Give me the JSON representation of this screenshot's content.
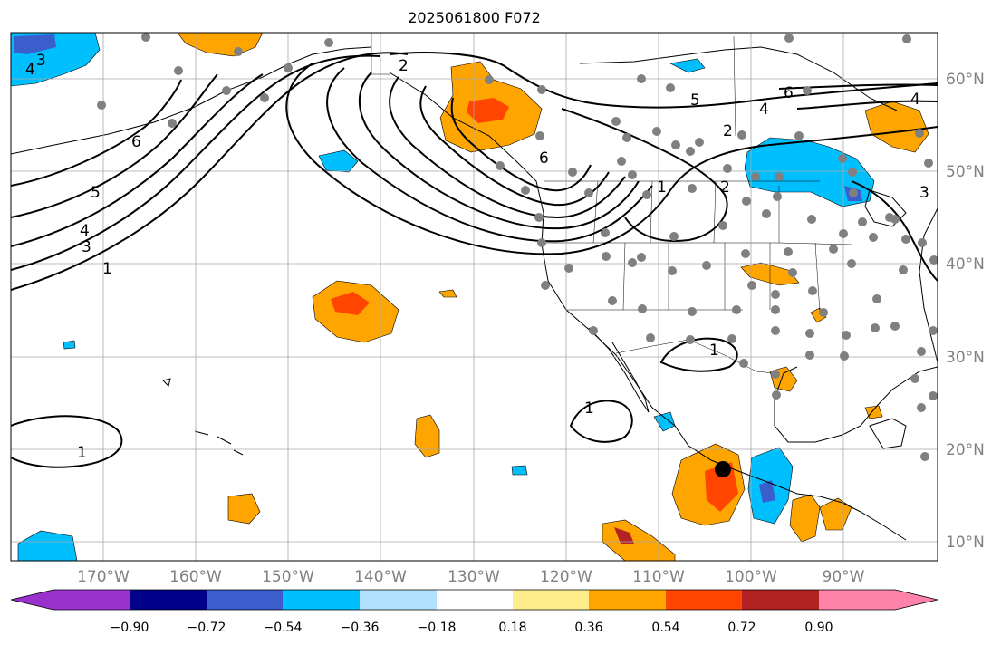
{
  "title": "2025061800 F072",
  "longitude_labels": [
    "170°W",
    "160°W",
    "150°W",
    "140°W",
    "130°W",
    "120°W",
    "110°W",
    "100°W",
    "90°W"
  ],
  "latitude_labels": [
    "10°N",
    "20°N",
    "30°N",
    "40°N",
    "50°N",
    "60°N"
  ],
  "colorbar": {
    "tick_labels": [
      "−0.90",
      "−0.72",
      "−0.54",
      "−0.36",
      "−0.18",
      "0.18",
      "0.36",
      "0.54",
      "0.72",
      "0.90"
    ],
    "colors": [
      "#9932cc",
      "#00008b",
      "#3a5fcd",
      "#00bfff",
      "#b0e2ff",
      "#ffffff",
      "#ffec8b",
      "#ffa500",
      "#ff4500",
      "#b22222",
      "#ff82ab"
    ]
  },
  "contour_labels": [
    "1",
    "2",
    "3",
    "4",
    "5",
    "6"
  ],
  "colors": {
    "positive_orange": "#ffa500",
    "positive_red": "#ff4500",
    "positive_darkred": "#b22222",
    "negative_lightblue": "#00bfff",
    "negative_blue": "#3a5fcd",
    "stations": "#808080",
    "gridlines": "#a9a9a9",
    "marker": "#000000"
  }
}
